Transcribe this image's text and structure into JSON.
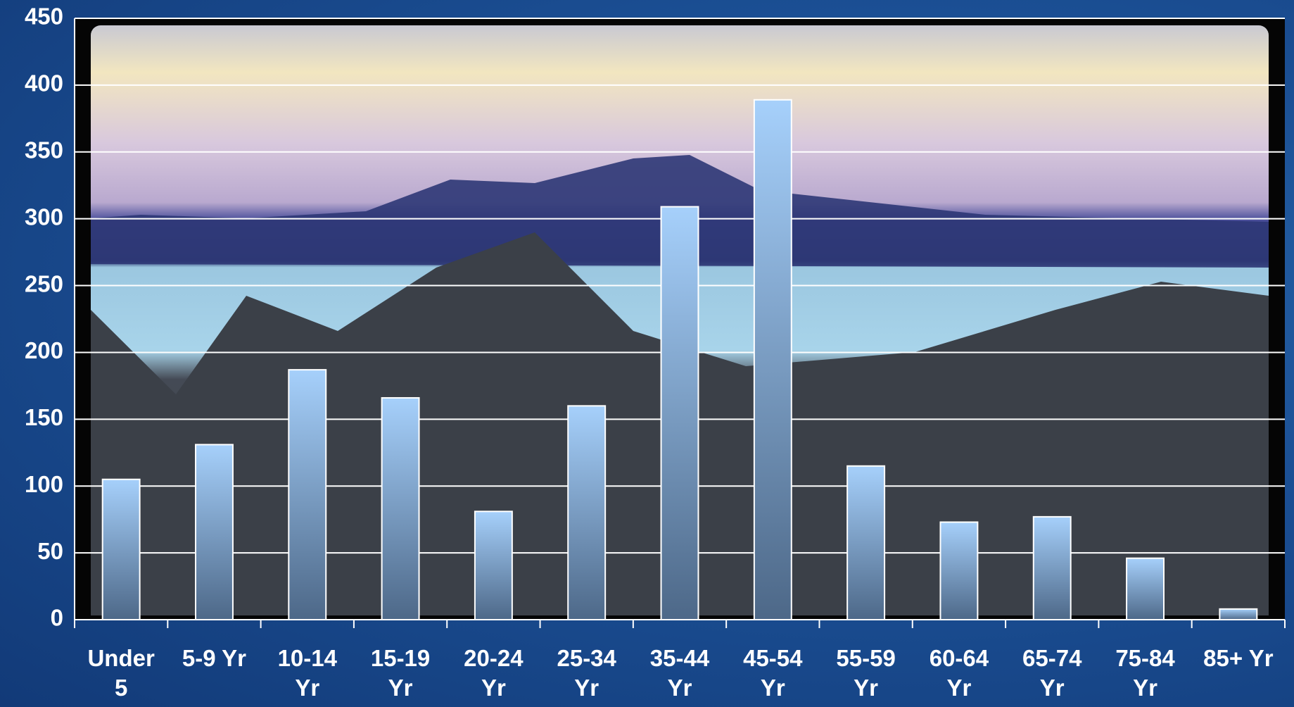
{
  "chart_data": {
    "type": "bar",
    "categories": [
      "Under 5",
      "5-9 Yr",
      "10-14 Yr",
      "15-19 Yr",
      "20-24 Yr",
      "25-34 Yr",
      "35-44 Yr",
      "45-54 Yr",
      "55-59 Yr",
      "60-64 Yr",
      "65-74 Yr",
      "75-84 Yr",
      "85+ Yr"
    ],
    "values": [
      105,
      131,
      187,
      166,
      81,
      160,
      309,
      389,
      115,
      73,
      77,
      46,
      8
    ],
    "color": "#9fc8f5",
    "ylim": [
      0,
      450
    ],
    "yticks": [
      0,
      50,
      100,
      150,
      200,
      250,
      300,
      350,
      400,
      450
    ],
    "grid": true
  }
}
